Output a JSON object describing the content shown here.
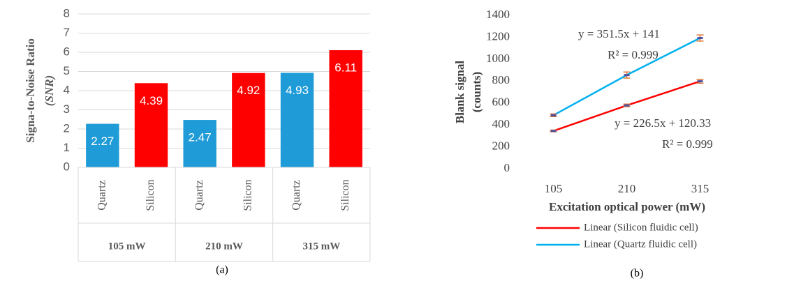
{
  "chart_data": [
    {
      "type": "bar",
      "ylabel": [
        "Signa-to-Noise Ratio",
        "(SNR)"
      ],
      "caption": "(a)",
      "categories": [
        "105 mW",
        "210 mW",
        "315 mW"
      ],
      "series": [
        {
          "name": "Quartz",
          "color": "#1f9bd7",
          "values": [
            2.27,
            2.47,
            4.93
          ]
        },
        {
          "name": "Silicon",
          "color": "#ff0000",
          "values": [
            4.39,
            4.92,
            6.11
          ]
        }
      ],
      "ylim": [
        0,
        8
      ],
      "yticks": [
        0,
        1,
        2,
        3,
        4,
        5,
        6,
        7,
        8
      ],
      "grid": true
    },
    {
      "type": "line",
      "ylabel": [
        "Blank signal",
        "(counts)"
      ],
      "xlabel": "Excitation optical power (mW)",
      "caption": "(b)",
      "categories": [
        "105",
        "210",
        "315"
      ],
      "series": [
        {
          "name": "Linear (Silicon fluidic cell)",
          "color": "#ff0000",
          "values": [
            345,
            578,
            798
          ],
          "errors": [
            8,
            12,
            18
          ]
        },
        {
          "name": "Linear (Quartz fluidic cell)",
          "color": "#00b0f0",
          "values": [
            488,
            855,
            1193
          ],
          "errors": [
            12,
            28,
            28
          ]
        }
      ],
      "error_color": "#e07b39",
      "annotations": [
        "y = 351.5x + 141",
        "R² = 0.999",
        "y = 226.5x + 120.33",
        "R² = 0.999"
      ],
      "ylim": [
        0,
        1400
      ],
      "yticks": [
        0,
        200,
        400,
        600,
        800,
        1000,
        1200,
        1400
      ],
      "grid": true
    }
  ]
}
